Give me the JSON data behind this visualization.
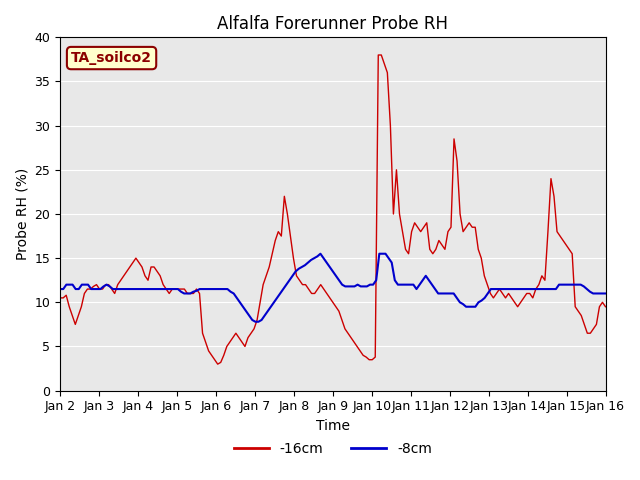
{
  "title": "Alfalfa Forerunner Probe RH",
  "ylabel": "Probe RH (%)",
  "xlabel": "Time",
  "ylim": [
    0,
    40
  ],
  "legend_label": "TA_soilco2",
  "bg_color": "#e8e8e8",
  "line1_label": "-16cm",
  "line1_color": "#cc0000",
  "line2_label": "-8cm",
  "line2_color": "#0000cc",
  "x_ticks": [
    "Jan 2",
    "Jan 3",
    "Jan 4",
    "Jan 5",
    "Jan 6",
    "Jan 7",
    "Jan 8",
    "Jan 9",
    "Jan 10",
    "Jan 11",
    "Jan 12",
    "Jan 13",
    "Jan 14",
    "Jan 15",
    "Jan 16"
  ],
  "red_y": [
    10.5,
    10.5,
    10.8,
    9.5,
    8.5,
    7.5,
    8.5,
    9.5,
    11.0,
    11.5,
    11.5,
    11.8,
    12.0,
    11.5,
    11.5,
    12.0,
    12.0,
    11.5,
    11.0,
    12.0,
    12.5,
    13.0,
    13.5,
    14.0,
    14.5,
    15.0,
    14.5,
    14.0,
    13.0,
    12.5,
    14.0,
    14.0,
    13.5,
    13.0,
    12.0,
    11.5,
    11.0,
    11.5,
    11.5,
    11.5,
    11.5,
    11.5,
    11.0,
    11.0,
    11.0,
    11.5,
    11.0,
    6.5,
    5.5,
    4.5,
    4.0,
    3.5,
    3.0,
    3.2,
    4.0,
    5.0,
    5.5,
    6.0,
    6.5,
    6.0,
    5.5,
    5.0,
    6.0,
    6.5,
    7.0,
    8.0,
    10.0,
    12.0,
    13.0,
    14.0,
    15.5,
    17.0,
    18.0,
    17.5,
    22.0,
    20.0,
    17.5,
    15.0,
    13.0,
    12.5,
    12.0,
    12.0,
    11.5,
    11.0,
    11.0,
    11.5,
    12.0,
    11.5,
    11.0,
    10.5,
    10.0,
    9.5,
    9.0,
    8.0,
    7.0,
    6.5,
    6.0,
    5.5,
    5.0,
    4.5,
    4.0,
    3.8,
    3.5,
    3.5,
    3.8,
    38.0,
    38.0,
    37.0,
    36.0,
    30.0,
    20.0,
    25.0,
    20.0,
    18.0,
    16.0,
    15.5,
    18.0,
    19.0,
    18.5,
    18.0,
    18.5,
    19.0,
    16.0,
    15.5,
    16.0,
    17.0,
    16.5,
    16.0,
    18.0,
    18.5,
    28.5,
    26.0,
    20.0,
    18.0,
    18.5,
    19.0,
    18.5,
    18.5,
    16.0,
    15.0,
    13.0,
    12.0,
    11.0,
    10.5,
    11.0,
    11.5,
    11.0,
    10.5,
    11.0,
    10.5,
    10.0,
    9.5,
    10.0,
    10.5,
    11.0,
    11.0,
    10.5,
    11.5,
    12.0,
    13.0,
    12.5,
    18.0,
    24.0,
    22.0,
    18.0,
    17.5,
    17.0,
    16.5,
    16.0,
    15.5,
    9.5,
    9.0,
    8.5,
    7.5,
    6.5,
    6.5,
    7.0,
    7.5,
    9.5,
    10.0,
    9.5
  ],
  "blue_y": [
    11.5,
    11.5,
    12.0,
    12.0,
    12.0,
    11.5,
    11.5,
    12.0,
    12.0,
    12.0,
    11.5,
    11.5,
    11.5,
    11.5,
    11.8,
    12.0,
    11.8,
    11.5,
    11.5,
    11.5,
    11.5,
    11.5,
    11.5,
    11.5,
    11.5,
    11.5,
    11.5,
    11.5,
    11.5,
    11.5,
    11.5,
    11.5,
    11.5,
    11.5,
    11.5,
    11.5,
    11.5,
    11.5,
    11.5,
    11.2,
    11.0,
    11.0,
    11.0,
    11.2,
    11.3,
    11.5,
    11.5,
    11.5,
    11.5,
    11.5,
    11.5,
    11.5,
    11.5,
    11.5,
    11.5,
    11.2,
    11.0,
    10.5,
    10.0,
    9.5,
    9.0,
    8.5,
    8.0,
    7.8,
    7.8,
    8.0,
    8.5,
    9.0,
    9.5,
    10.0,
    10.5,
    11.0,
    11.5,
    12.0,
    12.5,
    13.0,
    13.5,
    13.8,
    14.0,
    14.2,
    14.5,
    14.8,
    15.0,
    15.2,
    15.5,
    15.0,
    14.5,
    14.0,
    13.5,
    13.0,
    12.5,
    12.0,
    11.8,
    11.8,
    11.8,
    11.8,
    12.0,
    11.8,
    11.8,
    11.8,
    12.0,
    12.0,
    12.5,
    15.5,
    15.5,
    15.5,
    15.0,
    14.5,
    12.5,
    12.0,
    12.0,
    12.0,
    12.0,
    12.0,
    12.0,
    11.5,
    12.0,
    12.5,
    13.0,
    12.5,
    12.0,
    11.5,
    11.0,
    11.0,
    11.0,
    11.0,
    11.0,
    11.0,
    10.5,
    10.0,
    9.8,
    9.5,
    9.5,
    9.5,
    9.5,
    10.0,
    10.2,
    10.5,
    11.0,
    11.5,
    11.5,
    11.5,
    11.5,
    11.5,
    11.5,
    11.5,
    11.5,
    11.5,
    11.5,
    11.5,
    11.5,
    11.5,
    11.5,
    11.5,
    11.5,
    11.5,
    11.5,
    11.5,
    11.5,
    11.5,
    11.5,
    12.0,
    12.0,
    12.0,
    12.0,
    12.0,
    12.0,
    12.0,
    12.0,
    11.8,
    11.5,
    11.2,
    11.0,
    11.0,
    11.0,
    11.0,
    11.0
  ]
}
